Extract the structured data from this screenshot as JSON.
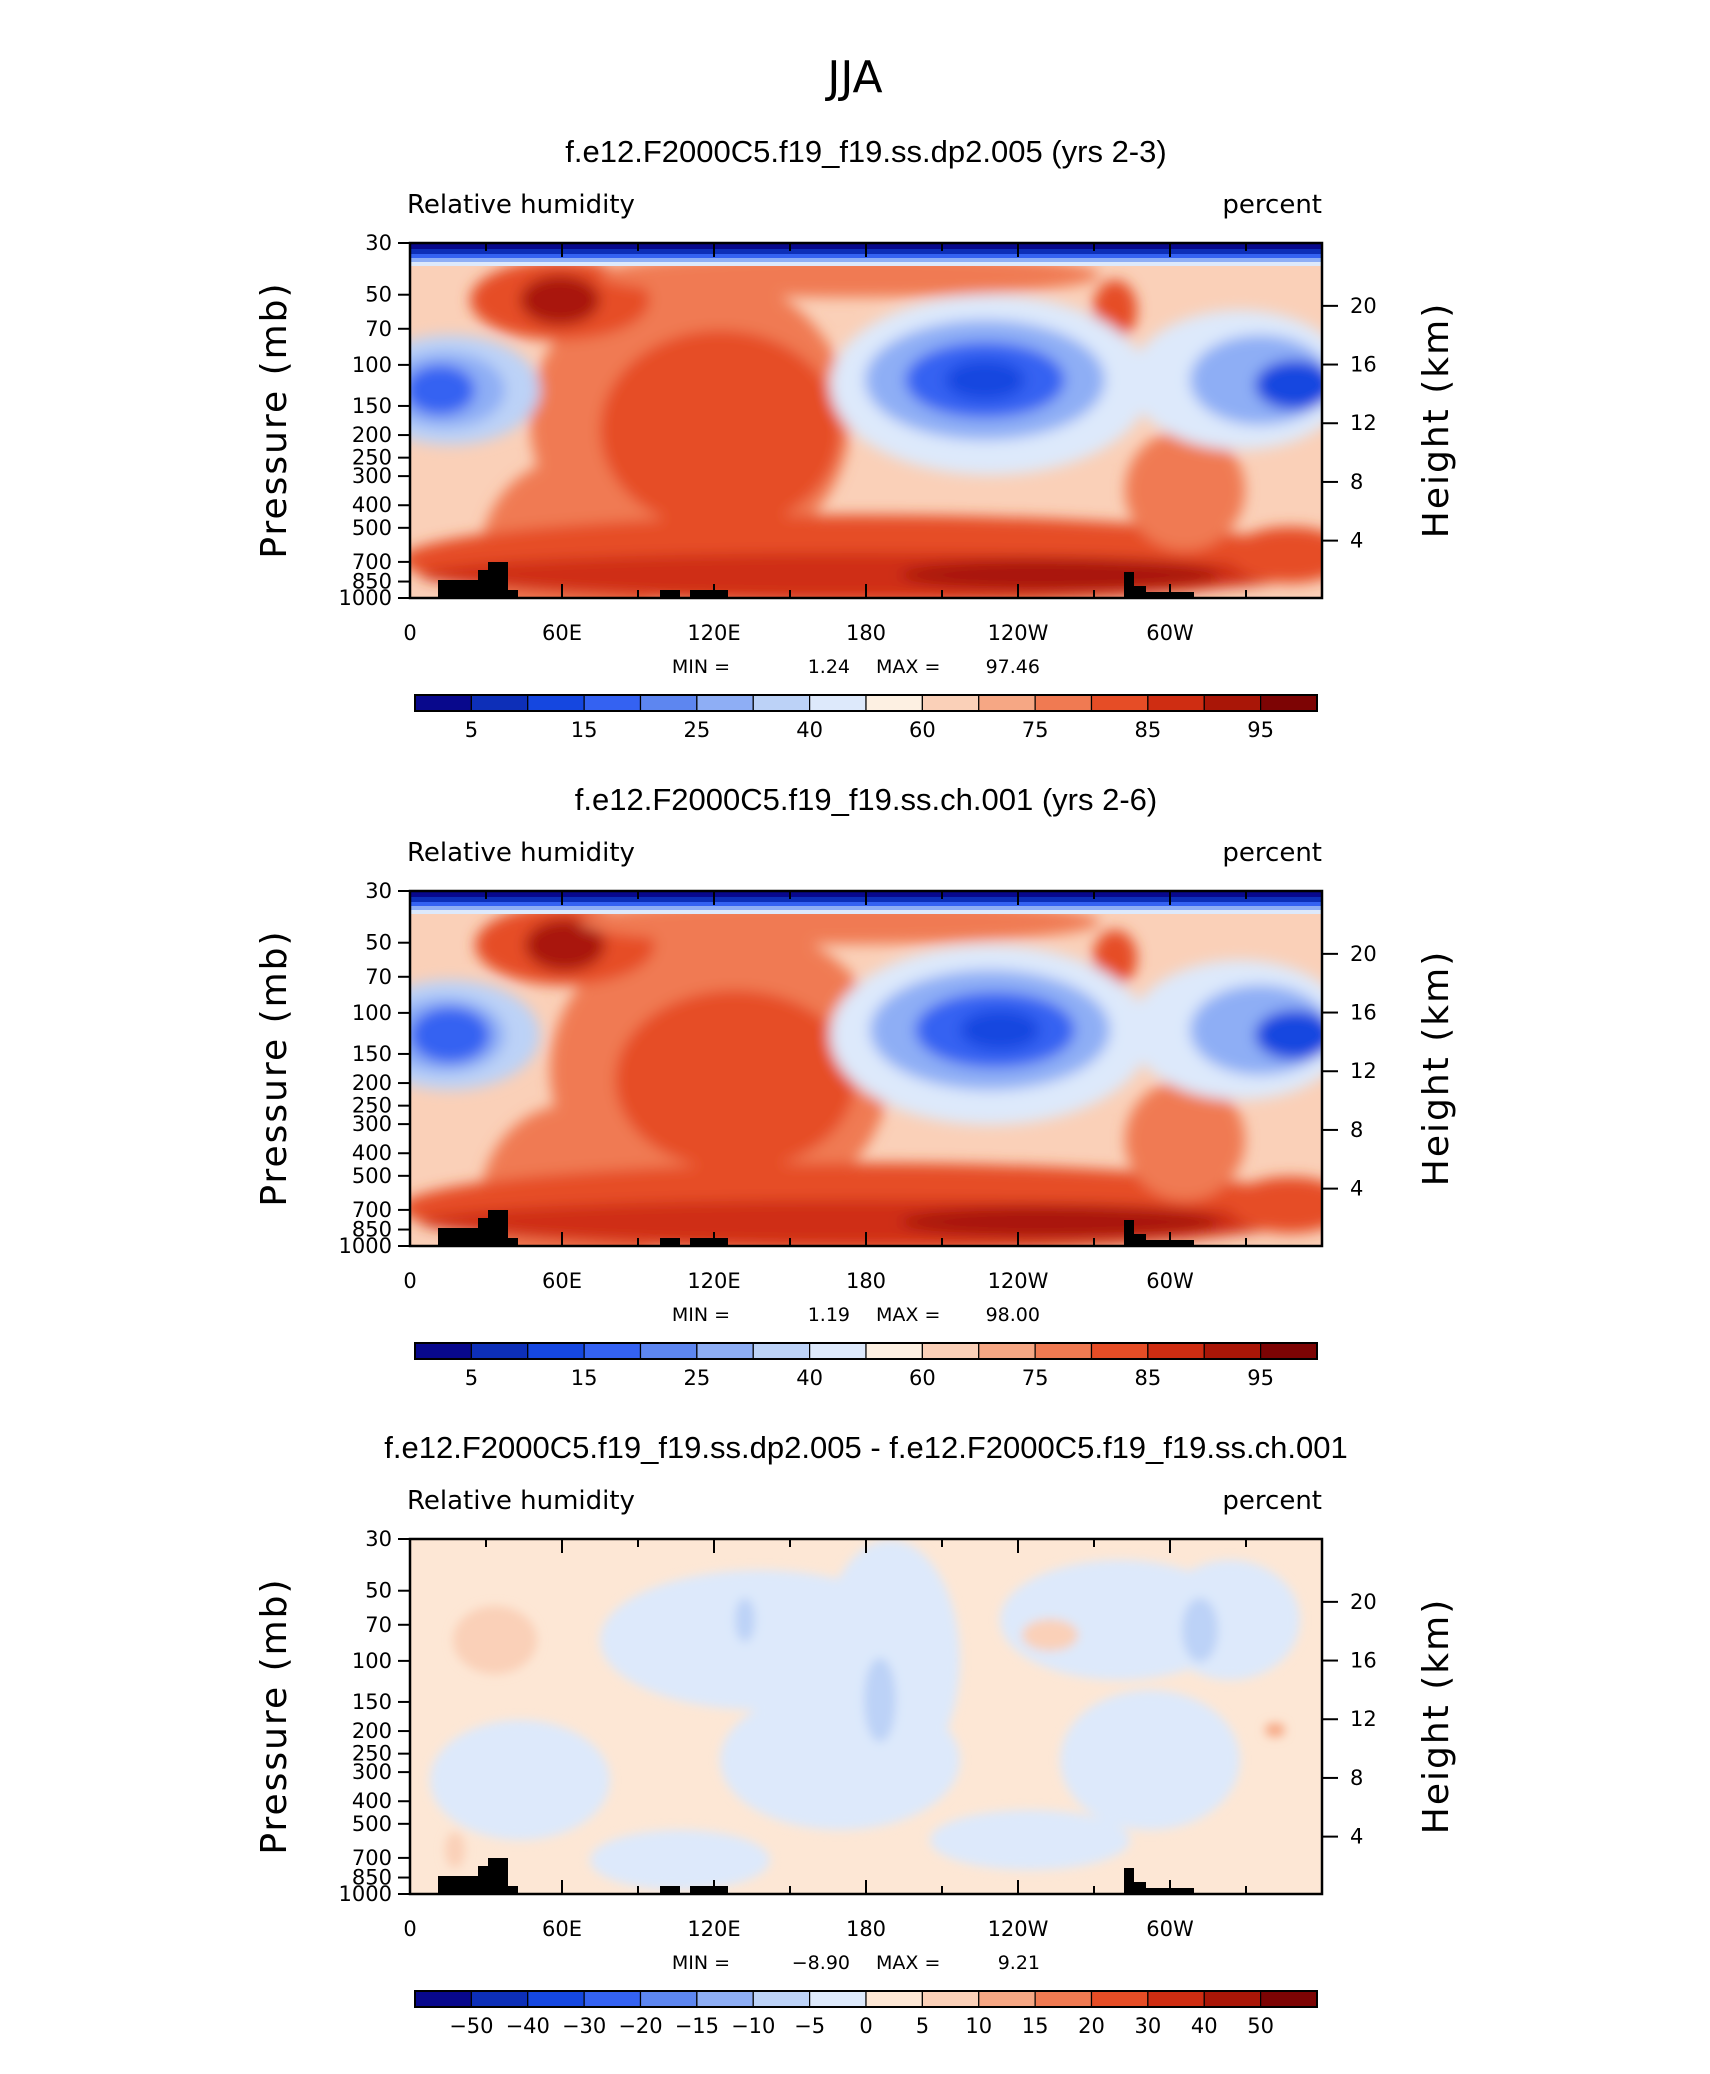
{
  "figure": {
    "main_title": "JJA"
  },
  "palette": {
    "full": [
      "#08088c",
      "#0d2fb8",
      "#1547e0",
      "#3462f2",
      "#5d86f0",
      "#8eaef5",
      "#bcd2f7",
      "#dde9fb",
      "#fdf0e2",
      "#fad0b8",
      "#f6a784",
      "#f07a52",
      "#e64d26",
      "#cf2d12",
      "#a91607",
      "#7d0404"
    ],
    "diff": [
      "#08088c",
      "#0d2fb8",
      "#1547e0",
      "#3462f2",
      "#5d86f0",
      "#8eaef5",
      "#bcd2f7",
      "#dde9fb",
      "#fde7d5",
      "#fad0b8",
      "#f6a784",
      "#f07a52",
      "#e64d26",
      "#cf2d12",
      "#a91607",
      "#7d0404"
    ]
  },
  "chart_data": [
    {
      "type": "heatmap",
      "title": "f.e12.F2000C5.f19_f19.ss.dp2.005 (yrs 2-3)",
      "left_label": "Relative humidity",
      "right_label": "percent",
      "ylabel": "Pressure (mb)",
      "ylabel_right": "Height (km)",
      "x_ticks": [
        "0",
        "60E",
        "120E",
        "180",
        "120W",
        "60W"
      ],
      "y_ticks": [
        "30",
        "50",
        "70",
        "100",
        "150",
        "200",
        "250",
        "300",
        "400",
        "500",
        "700",
        "850",
        "1000"
      ],
      "y_ticks_right": [
        "20",
        "16",
        "12",
        "8",
        "4"
      ],
      "min_label": "MIN =",
      "min_value": "1.24",
      "max_label": "MAX =",
      "max_value": "97.46",
      "colorbar_labels": [
        "5",
        "15",
        "25",
        "40",
        "60",
        "75",
        "85",
        "95"
      ],
      "xlim": [
        0,
        360
      ],
      "ylim": [
        1000,
        30
      ]
    },
    {
      "type": "heatmap",
      "title": "f.e12.F2000C5.f19_f19.ss.ch.001 (yrs 2-6)",
      "left_label": "Relative humidity",
      "right_label": "percent",
      "ylabel": "Pressure (mb)",
      "ylabel_right": "Height (km)",
      "x_ticks": [
        "0",
        "60E",
        "120E",
        "180",
        "120W",
        "60W"
      ],
      "y_ticks": [
        "30",
        "50",
        "70",
        "100",
        "150",
        "200",
        "250",
        "300",
        "400",
        "500",
        "700",
        "850",
        "1000"
      ],
      "y_ticks_right": [
        "20",
        "16",
        "12",
        "8",
        "4"
      ],
      "min_label": "MIN =",
      "min_value": "1.19",
      "max_label": "MAX =",
      "max_value": "98.00",
      "colorbar_labels": [
        "5",
        "15",
        "25",
        "40",
        "60",
        "75",
        "85",
        "95"
      ],
      "xlim": [
        0,
        360
      ],
      "ylim": [
        1000,
        30
      ]
    },
    {
      "type": "heatmap",
      "title": "f.e12.F2000C5.f19_f19.ss.dp2.005 - f.e12.F2000C5.f19_f19.ss.ch.001",
      "left_label": "Relative humidity",
      "right_label": "percent",
      "ylabel": "Pressure (mb)",
      "ylabel_right": "Height (km)",
      "x_ticks": [
        "0",
        "60E",
        "120E",
        "180",
        "120W",
        "60W"
      ],
      "y_ticks": [
        "30",
        "50",
        "70",
        "100",
        "150",
        "200",
        "250",
        "300",
        "400",
        "500",
        "700",
        "850",
        "1000"
      ],
      "y_ticks_right": [
        "20",
        "16",
        "12",
        "8",
        "4"
      ],
      "min_label": "MIN =",
      "min_value": "−8.90",
      "max_label": "MAX =",
      "max_value": "9.21",
      "colorbar_labels": [
        "−50",
        "−40",
        "−30",
        "−20",
        "−15",
        "−10",
        "−5",
        "0",
        "5",
        "10",
        "15",
        "20",
        "30",
        "40",
        "50"
      ],
      "xlim": [
        0,
        360
      ],
      "ylim": [
        1000,
        30
      ]
    }
  ]
}
